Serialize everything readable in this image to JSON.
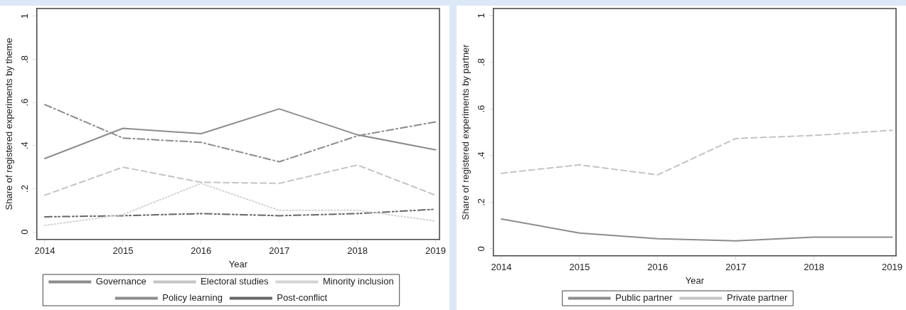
{
  "chart_data": [
    {
      "type": "line",
      "xlabel": "Year",
      "ylabel": "Share of registered experiments by theme",
      "x": [
        2014,
        2015,
        2016,
        2017,
        2018,
        2019
      ],
      "xlim": [
        2013.9,
        2019.05
      ],
      "xticks": [
        2014,
        2015,
        2016,
        2017,
        2018,
        2019
      ],
      "ylim": [
        -0.035,
        1.035
      ],
      "yticks": [
        {
          "value": 0,
          "label": "0"
        },
        {
          "value": 0.2,
          "label": ".2"
        },
        {
          "value": 0.4,
          "label": ".4"
        },
        {
          "value": 0.6,
          "label": ".6"
        },
        {
          "value": 0.8,
          "label": ".8"
        },
        {
          "value": 1,
          "label": "1"
        }
      ],
      "grid": false,
      "legend": "bottom",
      "marker": "none",
      "series": [
        {
          "name": "Governance",
          "color": "#8c8c8c",
          "line_style": "solid",
          "values": [
            0.34,
            0.48,
            0.455,
            0.57,
            0.45,
            0.38
          ]
        },
        {
          "name": "Electoral studies",
          "color": "#c4c4c4",
          "line_style": "dashed",
          "values": [
            0.17,
            0.3,
            0.23,
            0.225,
            0.31,
            0.17
          ]
        },
        {
          "name": "Minority inclusion",
          "color": "#d4d4d4",
          "line_style": "dotted",
          "values": [
            0.03,
            0.08,
            0.225,
            0.1,
            0.1,
            0.05
          ]
        },
        {
          "name": "Policy learning",
          "color": "#8c8c8c",
          "line_style": "dashdot",
          "values": [
            0.59,
            0.435,
            0.415,
            0.325,
            0.445,
            0.51
          ]
        },
        {
          "name": "Post-conflict",
          "color": "#666666",
          "line_style": "dashdotdot",
          "values": [
            0.07,
            0.075,
            0.085,
            0.075,
            0.085,
            0.105
          ]
        }
      ]
    },
    {
      "type": "line",
      "xlabel": "Year",
      "ylabel": "Share of registered experiments by partner",
      "x": [
        2014,
        2015,
        2016,
        2017,
        2018,
        2019
      ],
      "xlim": [
        2013.9,
        2019.05
      ],
      "xticks": [
        2014,
        2015,
        2016,
        2017,
        2018,
        2019
      ],
      "ylim": [
        -0.03,
        1.03
      ],
      "yticks": [
        {
          "value": 0,
          "label": "0"
        },
        {
          "value": 0.2,
          "label": ".2"
        },
        {
          "value": 0.4,
          "label": ".4"
        },
        {
          "value": 0.6,
          "label": ".6"
        },
        {
          "value": 0.8,
          "label": ".8"
        },
        {
          "value": 1,
          "label": "1"
        }
      ],
      "grid": false,
      "legend": "bottom",
      "marker": "none",
      "series": [
        {
          "name": "Public partner",
          "color": "#8c8c8c",
          "line_style": "solid",
          "values": [
            0.128,
            0.068,
            0.043,
            0.034,
            0.05,
            0.05
          ]
        },
        {
          "name": "Private partner",
          "color": "#c4c4c4",
          "line_style": "dashed",
          "values": [
            0.324,
            0.36,
            0.317,
            0.473,
            0.486,
            0.508
          ]
        }
      ]
    }
  ]
}
